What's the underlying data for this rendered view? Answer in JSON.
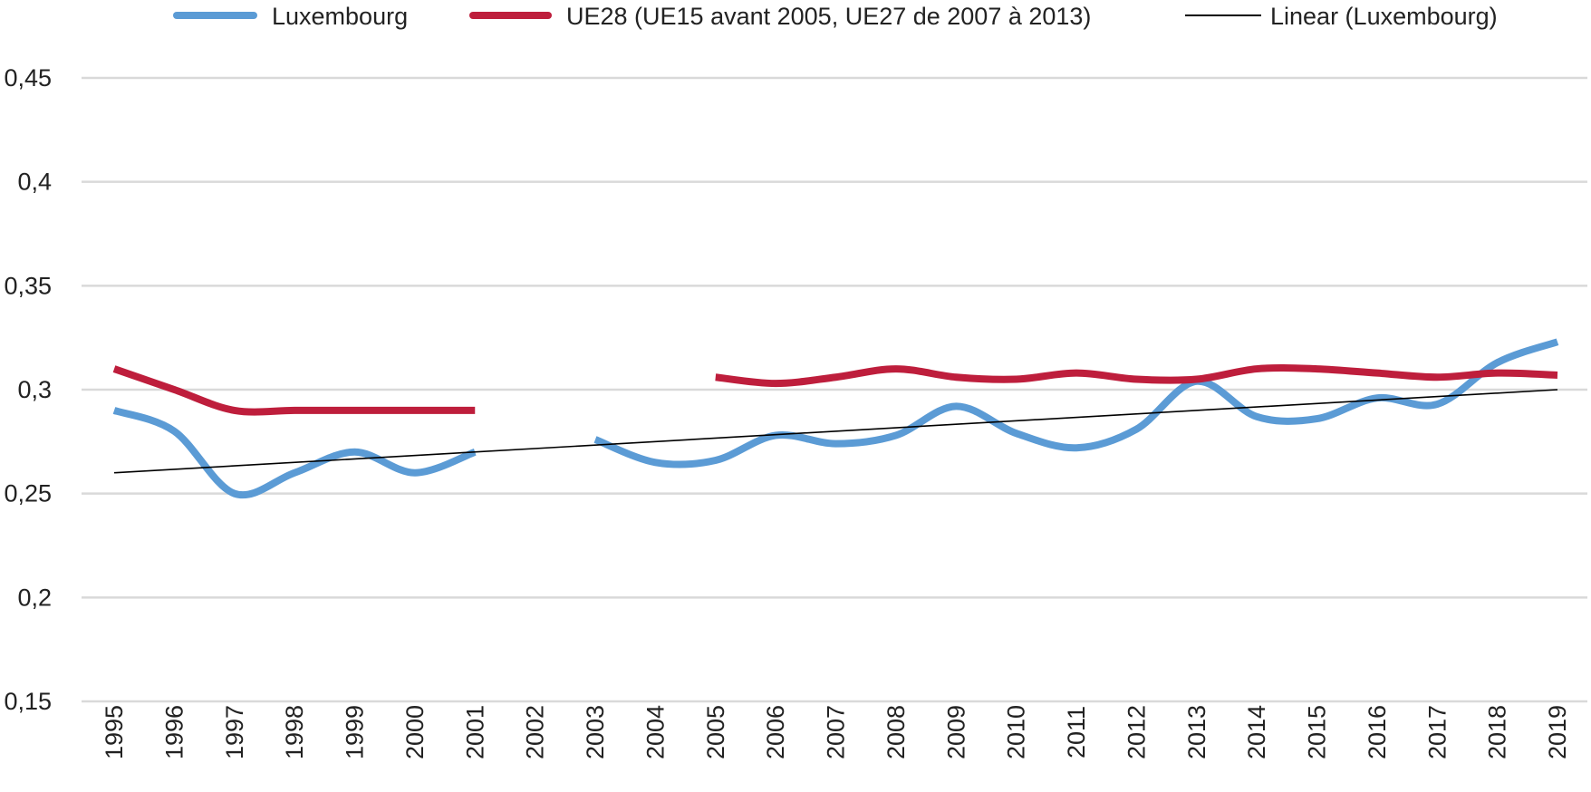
{
  "chart_data": {
    "type": "line",
    "title": "",
    "xlabel": "",
    "ylabel": "",
    "categories": [
      "1995",
      "1996",
      "1997",
      "1998",
      "1999",
      "2000",
      "2001",
      "2002",
      "2003",
      "2004",
      "2005",
      "2006",
      "2007",
      "2008",
      "2009",
      "2010",
      "2011",
      "2012",
      "2013",
      "2014",
      "2015",
      "2016",
      "2017",
      "2018",
      "2019"
    ],
    "yticks": [
      "0,15",
      "0,2",
      "0,25",
      "0,3",
      "0,35",
      "0,4",
      "0,45"
    ],
    "ylim": [
      0.15,
      0.45
    ],
    "grid": "horizontal",
    "legend_position": "top",
    "series": [
      {
        "name": "Luxembourg",
        "color": "#5b9bd5",
        "style": "smooth-thick",
        "values": [
          0.29,
          0.28,
          0.25,
          0.26,
          0.27,
          0.26,
          0.27,
          null,
          0.276,
          0.265,
          0.266,
          0.278,
          0.274,
          0.278,
          0.292,
          0.279,
          0.272,
          0.281,
          0.304,
          0.287,
          0.286,
          0.296,
          0.293,
          0.313,
          0.323
        ]
      },
      {
        "name": "UE28 (UE15 avant 2005, UE27 de 2007 à 2013)",
        "color": "#be1e3c",
        "style": "smooth-thick",
        "values": [
          0.31,
          0.3,
          0.29,
          0.29,
          0.29,
          0.29,
          0.29,
          null,
          null,
          null,
          0.306,
          0.303,
          0.306,
          0.31,
          0.306,
          0.305,
          0.308,
          0.305,
          0.305,
          0.31,
          0.31,
          0.308,
          0.306,
          0.308,
          0.307
        ]
      },
      {
        "name": "Linear (Luxembourg)",
        "color": "#000000",
        "style": "trendline",
        "values": [
          0.26,
          0.2617,
          0.2633,
          0.265,
          0.2667,
          0.2683,
          0.27,
          0.2717,
          0.2733,
          0.275,
          0.2767,
          0.2783,
          0.28,
          0.2817,
          0.2833,
          0.285,
          0.2867,
          0.2883,
          0.29,
          0.2917,
          0.2933,
          0.295,
          0.2967,
          0.2983,
          0.3
        ]
      }
    ]
  }
}
